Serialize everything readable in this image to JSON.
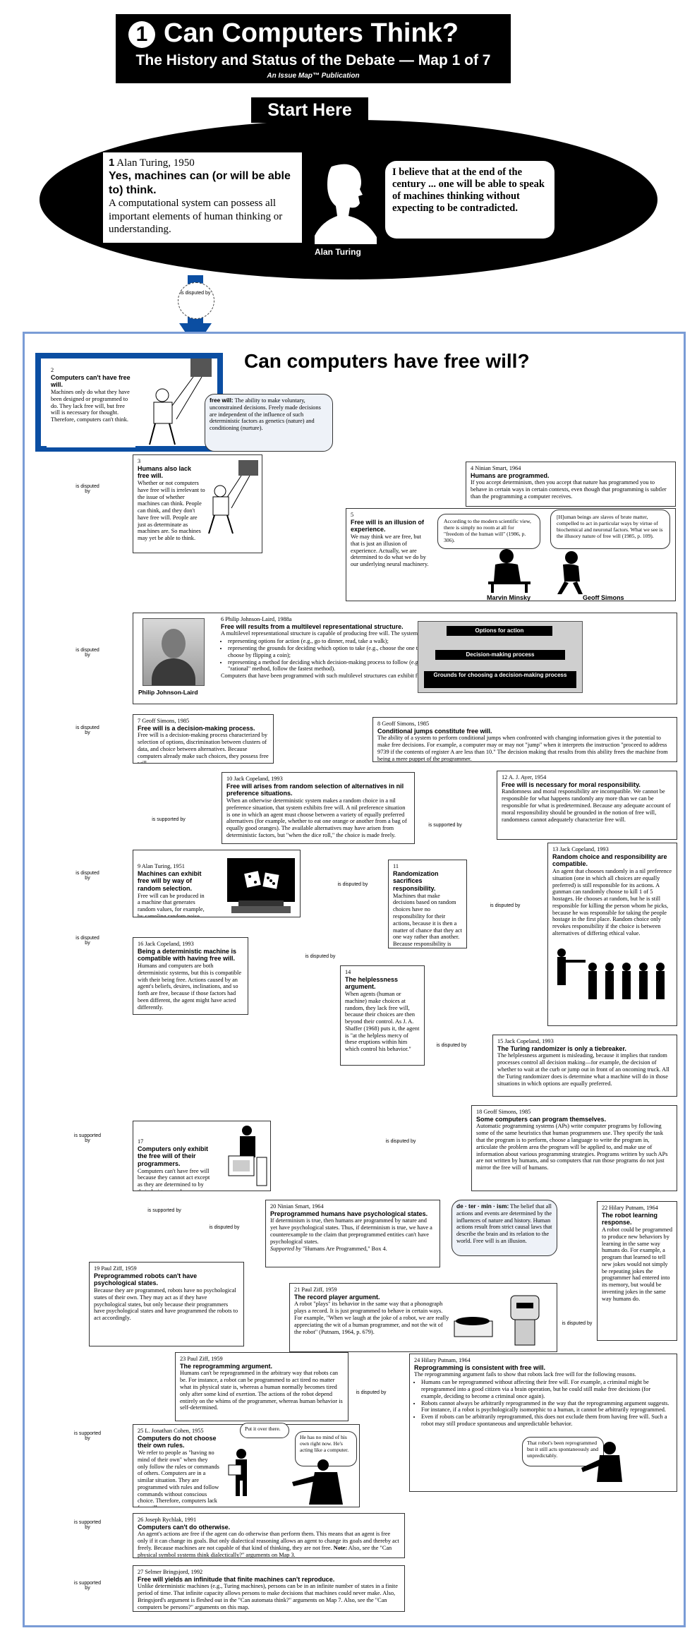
{
  "header": {
    "number": "1",
    "title": "Can Computers Think?",
    "subtitle": "The History and Status of the Debate — Map 1 of 7",
    "publisher": "An Issue Map™ Publication"
  },
  "start_here": "Start Here",
  "claim1": {
    "number": "1",
    "author": "Alan Turing, 1950",
    "headline": "Yes, machines can (or will be able to) think.",
    "body": "A computational system can possess all important elements of human thinking or understanding.",
    "quote": "I believe that at the end of the century ... one will be able to speak of machines thinking without expecting to be contradicted.",
    "portrait_caption": "Alan Turing"
  },
  "relations": {
    "disputed": "is disputed by",
    "supported": "is supported by"
  },
  "section_title": "Can computers have free will?",
  "definitions": {
    "free_will_term": "free will:",
    "free_will_text": "The ability to make voluntary, unconstrained decisions. Freely made decisions are independent of the influence of such deterministic factors as genetics (nature) and conditioning (nurture).",
    "determinism_term": "de · ter · min · ism:",
    "determinism_text": "The belief that all actions and events are determined by the influences of nature and history. Human actions result from strict causal laws that describe the brain and its relation to the world. Free will is an illusion."
  },
  "claims": {
    "c2": {
      "num": "2",
      "head": "Computers can't have free will.",
      "body": "Machines only do what they have been designed or programmed to do. They lack free will, but free will is necessary for thought. Therefore, computers can't think."
    },
    "c3": {
      "num": "3",
      "head": "Humans also lack free will.",
      "body": "Whether or not computers have free will is irrelevant to the issue of whether machines can think. People can think, and they don't have free will. People are just as determinate as machines are. So machines may yet be able to think."
    },
    "c4": {
      "num": "4",
      "author": "Ninian Smart, 1964",
      "head": "Humans are programmed.",
      "body": "If you accept determinism, then you accept that nature has programmed you to behave in certain ways in certain contexts, even though that programming is subtler than the programming a computer receives."
    },
    "c5": {
      "num": "5",
      "head": "Free will is an illusion of experience.",
      "body": "We may think we are free, but that is just an illusion of experience. Actually, we are determined to do what we do by our underlying neural machinery."
    },
    "q5a": "According to the modern scientific view, there is simply no room at all for \"freedom of the human will\" (1986, p. 306).",
    "q5b": "[H]uman beings are slaves of brute matter, compelled to act in particular ways by virtue of biochemical and neuronal factors. What we see is the illusory nature of free will (1985, p. 109).",
    "minsky": "Marvin Minsky",
    "simons": "Geoff Simons",
    "c6": {
      "num": "6",
      "author": "Philip Johnson-Laird, 1988a",
      "head": "Free will results from a multilevel representational structure.",
      "intro": "A multilevel representational structure is capable of producing free will. The system must have levels for:",
      "items": [
        "representing options for action (e.g., go to dinner, read, take a walk);",
        "representing the grounds for deciding which option to take (e.g., choose the one that makes me happy, choose by flipping a coin);",
        "representing a method for deciding which decision-making process to follow (e.g., follow the most \"rational\" method, follow the fastest method)."
      ],
      "outro": "Computers that have been programmed with such multilevel structures can exhibit free will."
    },
    "johnson_laird": "Philip Johnson-Laird",
    "levels": [
      "Options for action",
      "Decision-making process",
      "Grounds for choosing a decision-making process"
    ],
    "c7": {
      "num": "7",
      "author": "Geoff Simons, 1985",
      "head": "Free will is a decision-making process.",
      "body": "Free will is a decision-making process characterized by selection of options, discrimination between clusters of data, and choice between alternatives. Because computers already make such choices, they possess free will."
    },
    "c8": {
      "num": "8",
      "author": "Geoff Simons, 1985",
      "head": "Conditional jumps constitute free will.",
      "body": "The ability of a system to perform conditional jumps when confronted with changing information gives it the potential to make free decisions. For example, a computer may or may not \"jump\" when it interprets the instruction \"proceed to address 9739 if the contents of register A are less than 10.\" The decision making that results from this ability frees the machine from being a mere puppet of the programmer."
    },
    "c9": {
      "num": "9",
      "author": "Alan Turing, 1951",
      "head": "Machines can exhibit free will by way of random selection.",
      "body": "Free will can be produced in a machine that generates random values, for example, by sampling random noise."
    },
    "c10": {
      "num": "10",
      "author": "Jack Copeland, 1993",
      "head": "Free will arises from random selection of alternatives in nil preference situations.",
      "body": "When an otherwise deterministic system makes a random choice in a nil preference situation, that system exhibits free will. A nil preference situation is one in which an agent must choose between a variety of equally preferred alternatives (for example, whether to eat one orange or another from a bag of equally good oranges). The available alternatives may have arisen from deterministic factors, but \"when the dice roll,\" the choice is made freely."
    },
    "c11": {
      "num": "11",
      "head": "Randomization sacrifices responsibility.",
      "body": "Machines that make decisions based on random choices have no responsibility for their actions, because it is then a matter of chance that they act one way rather than another. Because responsibility is necessary for free will, such machines lack free will."
    },
    "c12": {
      "num": "12",
      "author": "A. J. Ayer, 1954",
      "head": "Free will is necessary for moral responsibility.",
      "body": "Randomness and moral responsibility are incompatible. We cannot be responsible for what happens randomly any more than we can be responsible for what is predetermined. Because any adequate account of moral responsibility should be grounded in the notion of free will, randomness cannot adequately characterize free will."
    },
    "c13": {
      "num": "13",
      "author": "Jack Copeland, 1993",
      "head": "Random choice and responsibility are compatible.",
      "body": "An agent that chooses randomly in a nil preference situation (one in which all choices are equally preferred) is still responsible for its actions. A gunman can randomly choose to kill 1 of 5 hostages. He chooses at random, but he is still responsible for killing the person whom he picks, because he was responsible for taking the people hostage in the first place. Random choice only revokes responsibility if the choice is between alternatives of differing ethical value."
    },
    "c14": {
      "num": "14",
      "head": "The helplessness argument.",
      "body": "When agents (human or machine) make choices at random, they lack free will, because their choices are then beyond their control. As J. A. Shaffer (1968) puts it, the agent is \"at the helpless mercy of these eruptions within him which control his behavior.\""
    },
    "c15": {
      "num": "15",
      "author": "Jack Copeland, 1993",
      "head": "The Turing randomizer is only a tiebreaker.",
      "body": "The helplessness argument is misleading, because it implies that random processes control all decision making—for example, the decision of whether to wait at the curb or jump out in front of an oncoming truck. All the Turing randomizer does is determine what a machine will do in those situations in which options are equally preferred."
    },
    "c16": {
      "num": "16",
      "author": "Jack Copeland, 1993",
      "head": "Being a deterministic machine is compatible with having free will.",
      "body": "Humans and computers are both deterministic systems, but this is compatible with their being free. Actions caused by an agent's beliefs, desires, inclinations, and so forth are free, because if those factors had been different, the agent might have acted differently."
    },
    "c17": {
      "num": "17",
      "head": "Computers only exhibit the free will of their programmers.",
      "body": "Computers can't have free will because they cannot act except as they are determined to by their designers and programmers."
    },
    "c18": {
      "num": "18",
      "author": "Geoff Simons, 1985",
      "head": "Some computers can program themselves.",
      "body": "Automatic programming systems (APs) write computer programs by following some of the same heuristics that human programmers use. They specify the task that the program is to perform, choose a language to write the program in, articulate the problem area the program will be applied to, and make use of information about various programming strategies. Programs written by such APs are not written by humans, and so computers that run those programs do not just mirror the free will of humans."
    },
    "c19": {
      "num": "19",
      "author": "Paul Ziff, 1959",
      "head": "Preprogrammed robots can't have psychological states.",
      "body": "Because they are programmed, robots have no psychological states of their own. They may act as if they have psychological states, but only because their programmers have psychological states and have programmed the robots to act accordingly."
    },
    "c20": {
      "num": "20",
      "author": "Ninian Smart, 1964",
      "head": "Preprogrammed humans have psychological states.",
      "body": "If determinism is true, then humans are programmed by nature and yet have psychological states. Thus, if determinism is true, we have a counterexample to the claim that preprogrammed entities can't have psychological states.",
      "ref_label": "Supported by",
      "ref": "\"Humans Are Programmed,\" Box 4."
    },
    "c21": {
      "num": "21",
      "author": "Paul Ziff, 1959",
      "head": "The record player argument.",
      "body": "A robot \"plays\" its behavior in the same way that a phonograph plays a record. It is just programmed to behave in certain ways. For example, \"When we laugh at the joke of a robot, we are really appreciating the wit of a human programmer, and not the wit of the robot\" (Putnam, 1964, p. 679)."
    },
    "c22": {
      "num": "22",
      "author": "Hilary Putnam, 1964",
      "head": "The robot learning response.",
      "body": "A robot could be programmed to produce new behaviors by learning in the same way humans do. For example, a program that learned to tell new jokes would not simply be repeating jokes the programmer had entered into its memory, but would be inventing jokes in the same way humans do."
    },
    "c23": {
      "num": "23",
      "author": "Paul Ziff, 1959",
      "head": "The reprogramming argument.",
      "body": "Humans can't be reprogrammed in the arbitrary way that robots can be. For instance, a robot can be programmed to act tired no matter what its physical state is, whereas a human normally becomes tired only after some kind of exertion. The actions of the robot depend entirely on the whims of the programmer, whereas human behavior is self-determined."
    },
    "c24": {
      "num": "24",
      "author": "Hilary Putnam, 1964",
      "head": "Reprogramming is consistent with free will.",
      "intro": "The reprogramming argument fails to show that robots lack free will for the following reasons.",
      "items": [
        "Humans can be reprogrammed without affecting their free will. For example, a criminal might be reprogrammed into a good citizen via a brain operation, but he could still make free decisions (for example, deciding to become a criminal once again).",
        "Robots cannot always be arbitrarily reprogrammed in the way that the reprogramming argument suggests. For instance, if a robot is psychologically isomorphic to a human, it cannot be arbitrarily reprogrammed.",
        "Even if robots can be arbitrarily reprogrammed, this does not exclude them from having free will. Such a robot may still produce spontaneous and unpredictable behavior."
      ]
    },
    "q24": "That robot's been reprogrammed but it still acts spontaneously and unpredictably.",
    "c25": {
      "num": "25",
      "author": "L. Jonathan Cohen, 1955",
      "head": "Computers do not choose their own rules.",
      "body": "We refer to people as \"having no mind of their own\" when they only follow the rules or commands of others. Computers are in a similar situation. They are programmed with rules and follow commands without conscious choice. Therefore, computers lack free will."
    },
    "q25a": "Put it over there.",
    "q25b": "He has no mind of his own right now. He's acting like a computer.",
    "c26": {
      "num": "26",
      "author": "Joseph Rychlak, 1991",
      "head": "Computers can't do otherwise.",
      "body": "An agent's actions are free if the agent can do otherwise than perform them. This means that an agent is free only if it can change its goals. But only dialectical reasoning allows an agent to change its goals and thereby act freely. Because machines are not capable of that kind of thinking, they are not free.",
      "note_label": "Note:",
      "note": "Also, see the \"Can physical symbol systems think dialectically?\" arguments on Map 3."
    },
    "c27": {
      "num": "27",
      "author": "Selmer Bringsjord, 1992",
      "head": "Free will yields an infinitude that finite machines can't reproduce.",
      "body": "Unlike deterministic machines (e.g., Turing machines), persons can be in an infinite number of states in a finite period of time. That infinite capacity allows persons to make decisions that machines could never make. Also, Bringsjord's argument is fleshed out in the \"Can automata think?\" arguments on Map 7. Also, see the \"Can computers be persons?\" arguments on this map."
    }
  },
  "colors": {
    "arrow_blue": "#0b4ea2",
    "panel_border": "#7a9cd6",
    "black": "#000000"
  }
}
